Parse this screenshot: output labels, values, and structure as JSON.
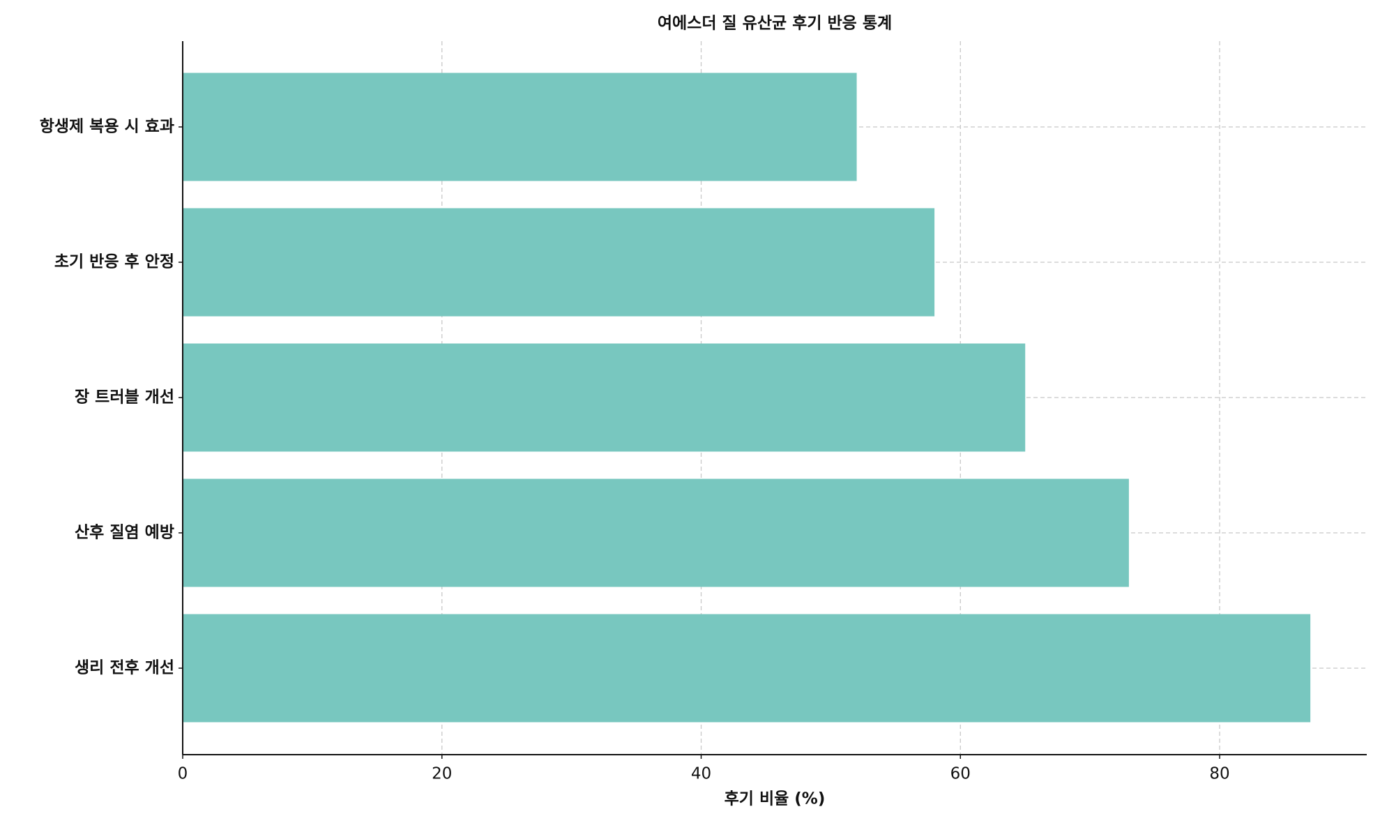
{
  "chart_data": {
    "type": "barh",
    "title": "여에스더 질 유산균 후기 반응 통계",
    "xlabel": "후기 비율 (%)",
    "categories": [
      "생리 전후 개선",
      "산후 질염 예방",
      "장 트러블 개선",
      "초기 반응 후 안정",
      "항생제 복용 시 효과"
    ],
    "values": [
      87,
      73,
      65,
      58,
      52
    ],
    "color": "#78c7bf",
    "xlim": [
      0,
      91.35
    ],
    "xticks": [
      0,
      20,
      40,
      60,
      80
    ],
    "grid": true
  }
}
